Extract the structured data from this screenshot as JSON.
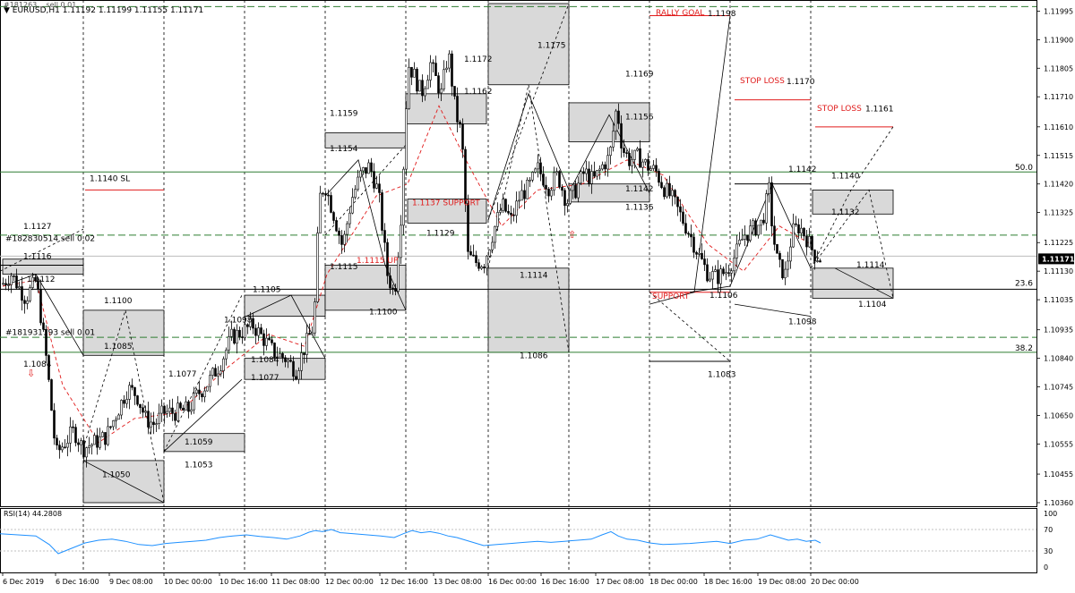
{
  "header": {
    "title": "EURUSD,H1  1.11192 1.11199 1.11155 1.11171",
    "line2": "#181263... sell 0.01"
  },
  "colors": {
    "bg": "#ffffff",
    "candle": "#000000",
    "grid": "#000000",
    "fib": "#2f7d32",
    "red": "#e01b1b",
    "box_fill": "#d9d9d9",
    "rsi": "#1e90ff",
    "price_tag_bg": "#000000"
  },
  "chart_data": [
    {
      "type": "candlestick",
      "symbol": "EURUSD",
      "timeframe": "H1",
      "ylim": [
        1.1036,
        1.1202
      ],
      "y_ticks": [
        "1.11995",
        "1.11900",
        "1.11805",
        "1.11710",
        "1.11610",
        "1.11515",
        "1.11420",
        "1.11325",
        "1.11225",
        "1.11130",
        "1.11035",
        "1.10935",
        "1.10840",
        "1.10745",
        "1.10650",
        "1.10555",
        "1.10455",
        "1.10360"
      ],
      "current_price": "1.11171",
      "x_tick_labels": [
        "6 Dec 2019",
        "6 Dec 16:00",
        "9 Dec 08:00",
        "10 Dec 00:00",
        "10 Dec 16:00",
        "11 Dec 08:00",
        "12 Dec 00:00",
        "12 Dec 16:00",
        "13 Dec 08:00",
        "16 Dec 00:00",
        "16 Dec 16:00",
        "17 Dec 08:00",
        "18 Dec 00:00",
        "18 Dec 16:00",
        "19 Dec 08:00",
        "20 Dec 00:00"
      ],
      "close_path": [
        [
          0,
          1.1108
        ],
        [
          12,
          1.1112
        ],
        [
          28,
          1.1104
        ],
        [
          40,
          1.111
        ],
        [
          52,
          1.1082
        ],
        [
          62,
          1.1052
        ],
        [
          72,
          1.1056
        ],
        [
          82,
          1.106
        ],
        [
          92,
          1.1054
        ],
        [
          105,
          1.1056
        ],
        [
          118,
          1.1058
        ],
        [
          130,
          1.1066
        ],
        [
          142,
          1.1074
        ],
        [
          152,
          1.1072
        ],
        [
          162,
          1.1064
        ],
        [
          172,
          1.1062
        ],
        [
          182,
          1.1066
        ],
        [
          195,
          1.1066
        ],
        [
          210,
          1.1067
        ],
        [
          220,
          1.1072
        ],
        [
          232,
          1.1076
        ],
        [
          245,
          1.1082
        ],
        [
          258,
          1.1091
        ],
        [
          270,
          1.1093
        ],
        [
          282,
          1.1095
        ],
        [
          295,
          1.109
        ],
        [
          305,
          1.1086
        ],
        [
          318,
          1.1084
        ],
        [
          330,
          1.108
        ],
        [
          340,
          1.1088
        ],
        [
          350,
          1.1095
        ],
        [
          356,
          1.1137
        ],
        [
          362,
          1.1142
        ],
        [
          372,
          1.1132
        ],
        [
          382,
          1.1121
        ],
        [
          392,
          1.1137
        ],
        [
          402,
          1.1145
        ],
        [
          412,
          1.1148
        ],
        [
          422,
          1.1139
        ],
        [
          432,
          1.1112
        ],
        [
          440,
          1.1105
        ],
        [
          448,
          1.1135
        ],
        [
          455,
          1.1182
        ],
        [
          462,
          1.1178
        ],
        [
          470,
          1.1172
        ],
        [
          480,
          1.1182
        ],
        [
          492,
          1.1172
        ],
        [
          500,
          1.1186
        ],
        [
          508,
          1.1166
        ],
        [
          515,
          1.1158
        ],
        [
          522,
          1.1118
        ],
        [
          530,
          1.1116
        ],
        [
          540,
          1.1116
        ],
        [
          550,
          1.1126
        ],
        [
          560,
          1.1135
        ],
        [
          570,
          1.113
        ],
        [
          580,
          1.1138
        ],
        [
          590,
          1.1141
        ],
        [
          600,
          1.1147
        ],
        [
          612,
          1.1141
        ],
        [
          622,
          1.1145
        ],
        [
          632,
          1.1136
        ],
        [
          642,
          1.114
        ],
        [
          652,
          1.1146
        ],
        [
          662,
          1.1143
        ],
        [
          672,
          1.1148
        ],
        [
          680,
          1.1151
        ],
        [
          688,
          1.1168
        ],
        [
          694,
          1.1154
        ],
        [
          702,
          1.115
        ],
        [
          712,
          1.1151
        ],
        [
          722,
          1.1148
        ],
        [
          732,
          1.1146
        ],
        [
          740,
          1.1141
        ],
        [
          750,
          1.1137
        ],
        [
          760,
          1.1131
        ],
        [
          770,
          1.1125
        ],
        [
          780,
          1.1118
        ],
        [
          790,
          1.1112
        ],
        [
          800,
          1.1111
        ],
        [
          810,
          1.1113
        ],
        [
          820,
          1.1118
        ],
        [
          830,
          1.1125
        ],
        [
          840,
          1.1127
        ],
        [
          850,
          1.1129
        ],
        [
          858,
          1.114
        ],
        [
          862,
          1.1126
        ],
        [
          868,
          1.1115
        ],
        [
          876,
          1.1112
        ],
        [
          884,
          1.1126
        ],
        [
          892,
          1.1128
        ],
        [
          900,
          1.1124
        ],
        [
          908,
          1.1119
        ],
        [
          916,
          1.1117
        ]
      ]
    },
    {
      "type": "line",
      "name": "RSI(14) 44.2808",
      "ylim": [
        0,
        100
      ],
      "y_ticks": [
        "100",
        "70",
        "30",
        "0"
      ],
      "levels": [
        30,
        70
      ],
      "x": [
        0,
        20,
        40,
        55,
        65,
        80,
        95,
        110,
        125,
        140,
        155,
        170,
        185,
        200,
        215,
        230,
        245,
        260,
        275,
        290,
        305,
        320,
        335,
        345,
        352,
        360,
        370,
        380,
        395,
        410,
        425,
        440,
        450,
        460,
        470,
        480,
        490,
        500,
        510,
        520,
        530,
        540,
        555,
        570,
        585,
        600,
        615,
        630,
        645,
        660,
        672,
        682,
        690,
        700,
        712,
        725,
        740,
        755,
        770,
        785,
        800,
        815,
        830,
        845,
        860,
        870,
        880,
        890,
        900,
        910,
        916
      ],
      "values": [
        62,
        60,
        58,
        42,
        25,
        35,
        45,
        50,
        52,
        48,
        42,
        40,
        44,
        46,
        48,
        50,
        55,
        58,
        60,
        57,
        55,
        52,
        58,
        65,
        68,
        66,
        70,
        64,
        62,
        60,
        58,
        55,
        62,
        68,
        64,
        66,
        63,
        58,
        55,
        50,
        45,
        40,
        42,
        44,
        46,
        48,
        46,
        48,
        50,
        52,
        60,
        66,
        58,
        52,
        50,
        45,
        42,
        43,
        44,
        46,
        48,
        44,
        50,
        52,
        60,
        55,
        50,
        52,
        48,
        50,
        45
      ]
    }
  ],
  "annotations": {
    "price_labels": [
      {
        "text": "1.1127",
        "x": 26,
        "y": 1.1127
      },
      {
        "text": "#182830514 sell 0.02",
        "x": 6,
        "y": 1.1123
      },
      {
        "text": "1.1116",
        "x": 26,
        "y": 1.1117
      },
      {
        "text": "1.1112",
        "x": 30,
        "y": 1.11095
      },
      {
        "text": "1.1100",
        "x": 116,
        "y": 1.11023
      },
      {
        "text": "#181931193 sell 0.01",
        "x": 6,
        "y": 1.10918
      },
      {
        "text": "1.1085",
        "x": 116,
        "y": 1.10872
      },
      {
        "text": "1.1084",
        "x": 26,
        "y": 1.10812
      },
      {
        "text": "1.1140 SL",
        "x": 100,
        "y": 1.1143
      },
      {
        "text": "1.1077",
        "x": 188,
        "y": 1.1078
      },
      {
        "text": "1.1105",
        "x": 282,
        "y": 1.1106
      },
      {
        "text": "1.1098",
        "x": 250,
        "y": 1.10959
      },
      {
        "text": "1.1084",
        "x": 280,
        "y": 1.10827
      },
      {
        "text": "1.1077",
        "x": 280,
        "y": 1.10768
      },
      {
        "text": "1.1059",
        "x": 206,
        "y": 1.10553
      },
      {
        "text": "1.1053",
        "x": 206,
        "y": 1.10478
      },
      {
        "text": "1.1050",
        "x": 114,
        "y": 1.10445
      },
      {
        "text": "1.1159",
        "x": 368,
        "y": 1.11647
      },
      {
        "text": "1.1154",
        "x": 368,
        "y": 1.11529
      },
      {
        "text": "1.1115",
        "x": 368,
        "y": 1.11137
      },
      {
        "text": "1.1100",
        "x": 412,
        "y": 1.10986
      },
      {
        "text": "1.1129",
        "x": 476,
        "y": 1.11248
      },
      {
        "text": "1.1172",
        "x": 518,
        "y": 1.11826
      },
      {
        "text": "1.1162",
        "x": 518,
        "y": 1.11719
      },
      {
        "text": "1.1175",
        "x": 600,
        "y": 1.11872
      },
      {
        "text": "1.1114",
        "x": 580,
        "y": 1.11108
      },
      {
        "text": "1.1086",
        "x": 580,
        "y": 1.10841
      },
      {
        "text": "1.1169",
        "x": 698,
        "y": 1.11777
      },
      {
        "text": "1.1156",
        "x": 698,
        "y": 1.11635
      },
      {
        "text": "1.1142",
        "x": 698,
        "y": 1.11395
      },
      {
        "text": "1.1136",
        "x": 698,
        "y": 1.11335
      },
      {
        "text": "1.1198",
        "x": 790,
        "y": 1.11979
      },
      {
        "text": "1.1170",
        "x": 878,
        "y": 1.11753
      },
      {
        "text": "1.1161",
        "x": 966,
        "y": 1.11662
      },
      {
        "text": "1.1142",
        "x": 880,
        "y": 1.11461
      },
      {
        "text": "1.1140",
        "x": 928,
        "y": 1.11438
      },
      {
        "text": "1.1132",
        "x": 928,
        "y": 1.11318
      },
      {
        "text": "1.1114",
        "x": 956,
        "y": 1.11143
      },
      {
        "text": "1.1106",
        "x": 792,
        "y": 1.11041
      },
      {
        "text": "1.1104",
        "x": 958,
        "y": 1.11012
      },
      {
        "text": "1.1098",
        "x": 880,
        "y": 1.10953
      },
      {
        "text": "1.1083",
        "x": 790,
        "y": 1.10778
      }
    ],
    "red_labels": [
      {
        "text": "1.1137 SUPPORT",
        "x": 460,
        "y": 1.11349
      },
      {
        "text": "1.1115 UP",
        "x": 398,
        "y": 1.11158
      },
      {
        "text": "RALLY GOAL",
        "x": 732,
        "y": 1.11982
      },
      {
        "text": "STOP LOSS",
        "x": 826,
        "y": 1.11755
      },
      {
        "text": "STOP LOSS",
        "x": 912,
        "y": 1.11663
      },
      {
        "text": "SUPPORT",
        "x": 728,
        "y": 1.11039
      }
    ],
    "fib_labels": [
      {
        "text": "50.0",
        "y": 1.1146
      },
      {
        "text": "23.6",
        "y": 1.11075
      },
      {
        "text": "38.2",
        "y": 1.1086
      }
    ]
  }
}
